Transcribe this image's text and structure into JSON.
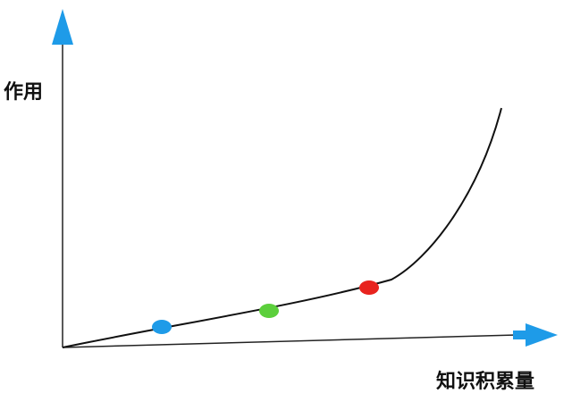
{
  "labels": {
    "y_axis": "作用",
    "x_axis": "知识积累量"
  },
  "colors": {
    "axis": "#1e9be8",
    "curve": "#111111",
    "marker_blue": "#1e9be8",
    "marker_green": "#5ccf3c",
    "marker_red": "#e8231e"
  },
  "markers": [
    {
      "name": "blue-marker",
      "color_key": "marker_blue"
    },
    {
      "name": "green-marker",
      "color_key": "marker_green"
    },
    {
      "name": "red-marker",
      "color_key": "marker_red"
    }
  ]
}
